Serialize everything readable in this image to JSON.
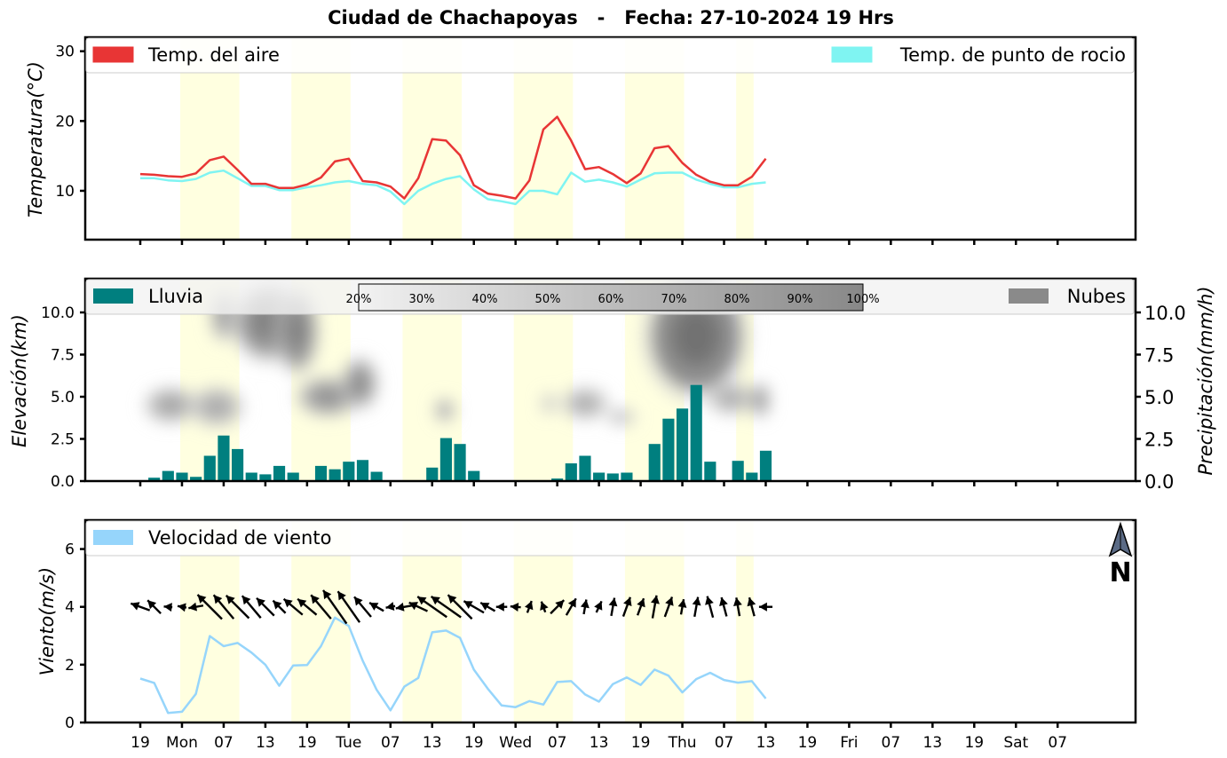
{
  "title": "Ciudad de Chachapoyas   -   Fecha: 27-10-2024 19 Hrs",
  "colors": {
    "temp_air": "#e83535",
    "dew_point": "#7ff4f2",
    "rain": "#007f7f",
    "clouds": "#8a8a8a",
    "wind": "#96d5fb",
    "day_band": "#ffffe0"
  },
  "x_axis": {
    "tick_labels": [
      "19",
      "Mon",
      "07",
      "13",
      "19",
      "Tue",
      "07",
      "13",
      "19",
      "Wed",
      "07",
      "13",
      "19",
      "Thu",
      "07",
      "13",
      "19",
      "Fri",
      "07",
      "13",
      "19",
      "Sat",
      "07"
    ],
    "step_hours": 3,
    "day_bands": [
      [
        3,
        7
      ],
      [
        11,
        15
      ],
      [
        19,
        23
      ],
      [
        27,
        31
      ],
      [
        35,
        39
      ],
      [
        43,
        44
      ]
    ]
  },
  "north_icon": {
    "label": "N"
  },
  "chart_data": [
    {
      "type": "line",
      "title": "",
      "ylabel": "Temperatura(°C)",
      "ylim": [
        3,
        32
      ],
      "yticks": [
        10,
        20,
        30
      ],
      "legend": [
        "Temp. del aire",
        "Temp. de punto de rocio"
      ],
      "legend_position": "top",
      "series": [
        {
          "name": "Temp. del aire",
          "values": [
            12.4,
            12.3,
            12.1,
            12.0,
            12.5,
            14.4,
            14.9,
            13.0,
            11.0,
            11.0,
            10.4,
            10.4,
            10.9,
            11.9,
            14.2,
            14.6,
            11.4,
            11.2,
            10.6,
            8.9,
            11.8,
            17.4,
            17.2,
            15.1,
            10.8,
            9.6,
            9.3,
            8.9,
            11.5,
            18.8,
            20.6,
            17.2,
            13.1,
            13.4,
            12.4,
            11.1,
            12.5,
            16.1,
            16.4,
            14.0,
            12.3,
            11.3,
            10.8,
            10.8,
            12.0,
            14.6
          ]
        },
        {
          "name": "Temp. de punto de rocio",
          "values": [
            11.8,
            11.8,
            11.5,
            11.4,
            11.7,
            12.6,
            12.9,
            11.8,
            10.7,
            10.7,
            10.1,
            10.1,
            10.5,
            10.8,
            11.2,
            11.4,
            11.0,
            10.8,
            9.9,
            8.1,
            10.0,
            11.0,
            11.7,
            12.1,
            10.2,
            8.8,
            8.5,
            8.1,
            10.0,
            10.0,
            9.5,
            12.6,
            11.3,
            11.6,
            11.2,
            10.6,
            11.6,
            12.5,
            12.6,
            12.6,
            11.6,
            11.0,
            10.5,
            10.5,
            11.0,
            11.2
          ]
        }
      ]
    },
    {
      "type": "bar",
      "title": "",
      "ylabel": "Elevación(km)",
      "ylabel_right": "Precipitación(mm/h)",
      "ylim": [
        0,
        12
      ],
      "yticks": [
        "0.0",
        "2.5",
        "5.0",
        "7.5",
        "10.0"
      ],
      "legend": [
        "Lluvia",
        "Nubes"
      ],
      "colorbar_labels": [
        "20%",
        "30%",
        "40%",
        "50%",
        "60%",
        "70%",
        "80%",
        "90%",
        "100%"
      ],
      "series": [
        {
          "name": "Lluvia",
          "values": [
            0,
            0.2,
            0.6,
            0.5,
            0.25,
            1.5,
            2.7,
            1.9,
            0.5,
            0.4,
            0.9,
            0.5,
            0,
            0.9,
            0.7,
            1.15,
            1.25,
            0.55,
            0,
            0,
            0,
            0.8,
            2.55,
            2.2,
            0.6,
            0,
            0,
            0,
            0,
            0,
            0.15,
            1.05,
            1.5,
            0.5,
            0.45,
            0.5,
            0.05,
            2.2,
            3.7,
            4.3,
            5.7,
            1.15,
            0.05,
            1.2,
            0.5,
            1.8
          ]
        }
      ],
      "clouds": [
        {
          "x": 2.2,
          "y": 4.5,
          "rx": 1.6,
          "ry": 0.9,
          "density": 0.45
        },
        {
          "x": 5.5,
          "y": 4.4,
          "rx": 1.6,
          "ry": 1.0,
          "density": 0.4
        },
        {
          "x": 6.0,
          "y": 9.8,
          "rx": 0.8,
          "ry": 1.3,
          "density": 0.5
        },
        {
          "x": 9.3,
          "y": 9.4,
          "rx": 2.3,
          "ry": 2.0,
          "density": 0.72
        },
        {
          "x": 11.3,
          "y": 8.9,
          "rx": 1.3,
          "ry": 2.2,
          "density": 0.7
        },
        {
          "x": 13.5,
          "y": 5.0,
          "rx": 1.9,
          "ry": 1.0,
          "density": 0.58
        },
        {
          "x": 15.8,
          "y": 5.8,
          "rx": 1.1,
          "ry": 1.3,
          "density": 0.62
        },
        {
          "x": 21.9,
          "y": 4.2,
          "rx": 0.6,
          "ry": 0.6,
          "density": 0.45
        },
        {
          "x": 29.4,
          "y": 4.6,
          "rx": 0.4,
          "ry": 0.5,
          "density": 0.3
        },
        {
          "x": 32.0,
          "y": 4.6,
          "rx": 1.4,
          "ry": 0.8,
          "density": 0.38
        },
        {
          "x": 34.6,
          "y": 3.8,
          "rx": 0.9,
          "ry": 0.4,
          "density": 0.28
        },
        {
          "x": 40.0,
          "y": 8.6,
          "rx": 3.2,
          "ry": 3.2,
          "density": 0.82
        },
        {
          "x": 42.5,
          "y": 4.9,
          "rx": 1.4,
          "ry": 0.8,
          "density": 0.38
        },
        {
          "x": 44.6,
          "y": 4.8,
          "rx": 0.6,
          "ry": 0.9,
          "density": 0.55
        }
      ]
    },
    {
      "type": "line",
      "title": "",
      "ylabel": "Viento(m/s)",
      "ylim": [
        0,
        7
      ],
      "yticks": [
        0,
        2,
        4,
        6
      ],
      "legend": [
        "Velocidad de viento"
      ],
      "series": [
        {
          "name": "Velocidad de viento",
          "values": [
            1.52,
            1.37,
            0.33,
            0.37,
            0.99,
            2.99,
            2.64,
            2.75,
            2.42,
            2.0,
            1.27,
            1.97,
            1.99,
            2.64,
            3.63,
            3.34,
            2.14,
            1.14,
            0.42,
            1.24,
            1.54,
            3.12,
            3.18,
            2.93,
            1.83,
            1.17,
            0.59,
            0.53,
            0.74,
            0.62,
            1.4,
            1.43,
            0.97,
            0.72,
            1.33,
            1.56,
            1.3,
            1.83,
            1.62,
            1.04,
            1.5,
            1.72,
            1.47,
            1.38,
            1.43,
            0.83
          ]
        }
      ],
      "arrow_level": 4.0,
      "wind_direction_deg": [
        110,
        135,
        95,
        100,
        80,
        135,
        140,
        135,
        140,
        135,
        135,
        130,
        130,
        140,
        145,
        145,
        140,
        120,
        80,
        80,
        115,
        125,
        125,
        135,
        120,
        120,
        90,
        95,
        200,
        160,
        225,
        210,
        190,
        205,
        190,
        200,
        200,
        190,
        200,
        190,
        190,
        165,
        165,
        170,
        165,
        90
      ]
    }
  ]
}
